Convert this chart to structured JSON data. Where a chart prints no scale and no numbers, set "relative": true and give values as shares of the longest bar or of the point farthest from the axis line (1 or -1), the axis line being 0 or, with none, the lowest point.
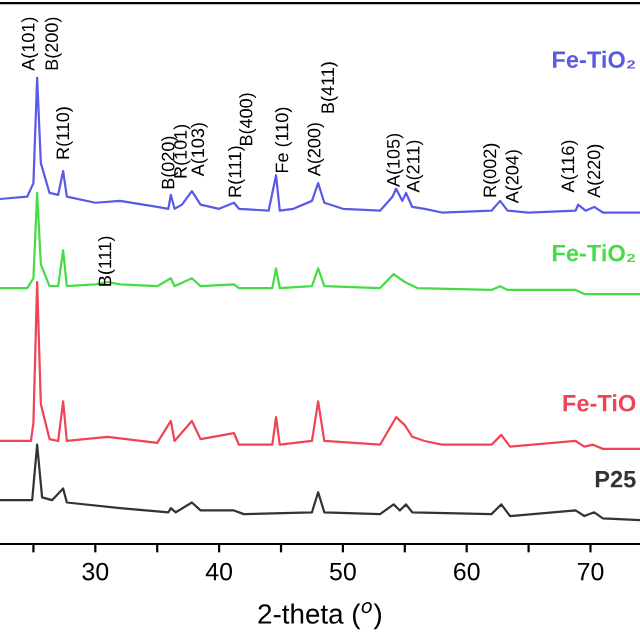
{
  "chart_data": {
    "type": "line",
    "relative": true,
    "xlabel": "2-theta ($^{o}$)",
    "tick_labels": "x",
    "grid": false,
    "legend": false,
    "marker": "none",
    "line_style": "solid",
    "xlim": [
      22.3,
      74
    ],
    "xticks": [
      {
        "value": 25,
        "label": null
      },
      30,
      {
        "value": 35,
        "label": null
      },
      40,
      {
        "value": 45,
        "label": null
      },
      50,
      {
        "value": 55,
        "label": null
      },
      60,
      {
        "value": 65,
        "label": null
      },
      70
    ],
    "series": [
      {
        "name": "Fe-TiO₂",
        "color": "#5a5ae8",
        "x": [
          22.3,
          24.5,
          25.0,
          25.3,
          25.6,
          26.3,
          27.0,
          27.4,
          27.7,
          30,
          32,
          35,
          35.9,
          36.1,
          36.4,
          37,
          37.8,
          38.5,
          40,
          41.2,
          41.6,
          44,
          44.6,
          44.9,
          46,
          47.5,
          48.0,
          48.5,
          50,
          53,
          54.0,
          54.3,
          54.8,
          55.1,
          55.6,
          56.6,
          58,
          62,
          62.7,
          63.3,
          65,
          68.8,
          69,
          69.6,
          70.3,
          71,
          74
        ],
        "values": [
          0.74,
          0.745,
          0.774,
          1.0,
          0.817,
          0.753,
          0.749,
          0.8,
          0.745,
          0.732,
          0.736,
          0.723,
          0.719,
          0.749,
          0.719,
          0.728,
          0.757,
          0.728,
          0.719,
          0.732,
          0.719,
          0.715,
          0.791,
          0.715,
          0.719,
          0.736,
          0.774,
          0.732,
          0.719,
          0.715,
          0.745,
          0.762,
          0.736,
          0.753,
          0.723,
          0.719,
          0.711,
          0.715,
          0.736,
          0.715,
          0.711,
          0.715,
          0.728,
          0.715,
          0.723,
          0.711,
          0.711
        ]
      },
      {
        "name": "Fe-TiO₂",
        "color": "#44dd44",
        "x": [
          22.3,
          24.5,
          25.0,
          25.3,
          25.6,
          26.3,
          27.0,
          27.4,
          27.7,
          30,
          31,
          32,
          35,
          36.1,
          36.4,
          37.8,
          38.5,
          41.2,
          41.6,
          44.3,
          44.6,
          44.9,
          47.5,
          48,
          48.5,
          53,
          54.1,
          55,
          56,
          62,
          62.7,
          63.3,
          68.8,
          69.5,
          74
        ],
        "values": [
          0.549,
          0.549,
          0.57,
          0.753,
          0.6,
          0.553,
          0.553,
          0.63,
          0.553,
          0.557,
          0.562,
          0.557,
          0.553,
          0.57,
          0.553,
          0.57,
          0.553,
          0.557,
          0.549,
          0.549,
          0.591,
          0.549,
          0.553,
          0.591,
          0.553,
          0.549,
          0.579,
          0.562,
          0.549,
          0.545,
          0.553,
          0.545,
          0.545,
          0.536,
          0.536
        ]
      },
      {
        "name": "Fe-TiO",
        "color": "#ee4455",
        "x": [
          22.3,
          24.8,
          25.0,
          25.3,
          25.6,
          26.3,
          27.0,
          27.4,
          27.7,
          31,
          35,
          36.1,
          36.4,
          37.8,
          38.5,
          41.2,
          41.6,
          44.3,
          44.6,
          44.9,
          47.5,
          48,
          48.5,
          53,
          54.3,
          55,
          55.6,
          56.6,
          58,
          62,
          62.8,
          63.5,
          68.8,
          69.5,
          70.2,
          71,
          74
        ],
        "values": [
          0.221,
          0.221,
          0.26,
          0.562,
          0.3,
          0.225,
          0.221,
          0.306,
          0.221,
          0.23,
          0.217,
          0.264,
          0.221,
          0.264,
          0.225,
          0.238,
          0.213,
          0.213,
          0.272,
          0.213,
          0.221,
          0.306,
          0.221,
          0.213,
          0.272,
          0.255,
          0.23,
          0.221,
          0.213,
          0.213,
          0.234,
          0.209,
          0.221,
          0.209,
          0.213,
          0.204,
          0.204
        ]
      },
      {
        "name": "P25",
        "color": "#333333",
        "x": [
          22.3,
          24.9,
          25.3,
          25.7,
          26.5,
          27.4,
          27.7,
          32,
          35.9,
          36.1,
          36.5,
          37.8,
          38.5,
          41.2,
          42,
          47.5,
          48,
          48.5,
          53,
          54.1,
          54.6,
          55.1,
          55.6,
          62,
          62.8,
          63.5,
          68.8,
          69.5,
          70.3,
          71,
          74
        ],
        "values": [
          0.094,
          0.094,
          0.213,
          0.1,
          0.094,
          0.119,
          0.089,
          0.077,
          0.068,
          0.077,
          0.068,
          0.089,
          0.072,
          0.072,
          0.064,
          0.068,
          0.111,
          0.068,
          0.064,
          0.085,
          0.072,
          0.085,
          0.068,
          0.064,
          0.085,
          0.06,
          0.072,
          0.06,
          0.068,
          0.055,
          0.051
        ]
      }
    ],
    "annotations": [
      "A(101)",
      "B(200)",
      "R(110)",
      "B(020)",
      "R(101)",
      "A(103)",
      "R(111)",
      "B(400)",
      "Fe (110)",
      "A(200)",
      "B(411)",
      "A(105)",
      "A(211)",
      "R(002)",
      "A(204)",
      "A(116)",
      "A(220)",
      "B(111)"
    ]
  }
}
